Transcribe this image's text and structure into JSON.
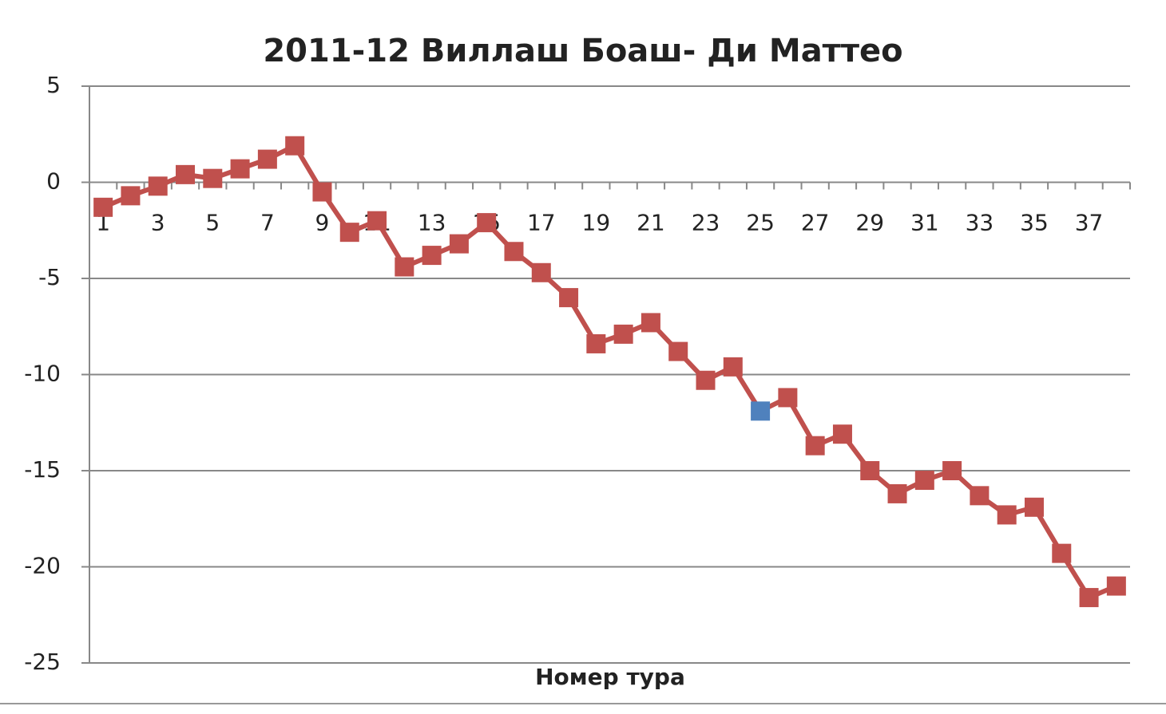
{
  "chart_data": {
    "type": "line",
    "title": "2011-12 Виллаш Боаш- Ди Маттео",
    "x_label": "Номер тура",
    "categories": [
      1,
      null,
      3,
      null,
      5,
      null,
      7,
      null,
      9,
      null,
      11,
      null,
      13,
      null,
      15,
      null,
      17,
      null,
      19,
      null,
      21,
      null,
      23,
      null,
      25,
      null,
      27,
      null,
      29,
      null,
      31,
      null,
      33,
      null,
      35,
      null,
      37,
      null
    ],
    "values": [
      -1.3,
      -0.7,
      -0.2,
      0.4,
      0.2,
      0.7,
      1.2,
      1.9,
      -0.5,
      -2.6,
      -2.0,
      -4.4,
      -3.8,
      -3.2,
      -2.1,
      -3.6,
      -4.7,
      -6.0,
      -8.4,
      -7.9,
      -7.3,
      -8.8,
      -10.3,
      -9.6,
      -11.9,
      -11.2,
      -13.7,
      -13.1,
      -15.0,
      -16.2,
      -15.5,
      -15.0,
      -16.3,
      -17.3,
      -16.9,
      -19.3,
      -21.6,
      -21.0
    ],
    "color": "#c0504d",
    "highlight": {
      "index": 24,
      "color": "#4f81bd"
    },
    "ylim": [
      -25,
      5
    ],
    "yticks": [
      -25,
      -20,
      -15,
      -10,
      -5,
      0,
      5
    ],
    "grid": true
  }
}
